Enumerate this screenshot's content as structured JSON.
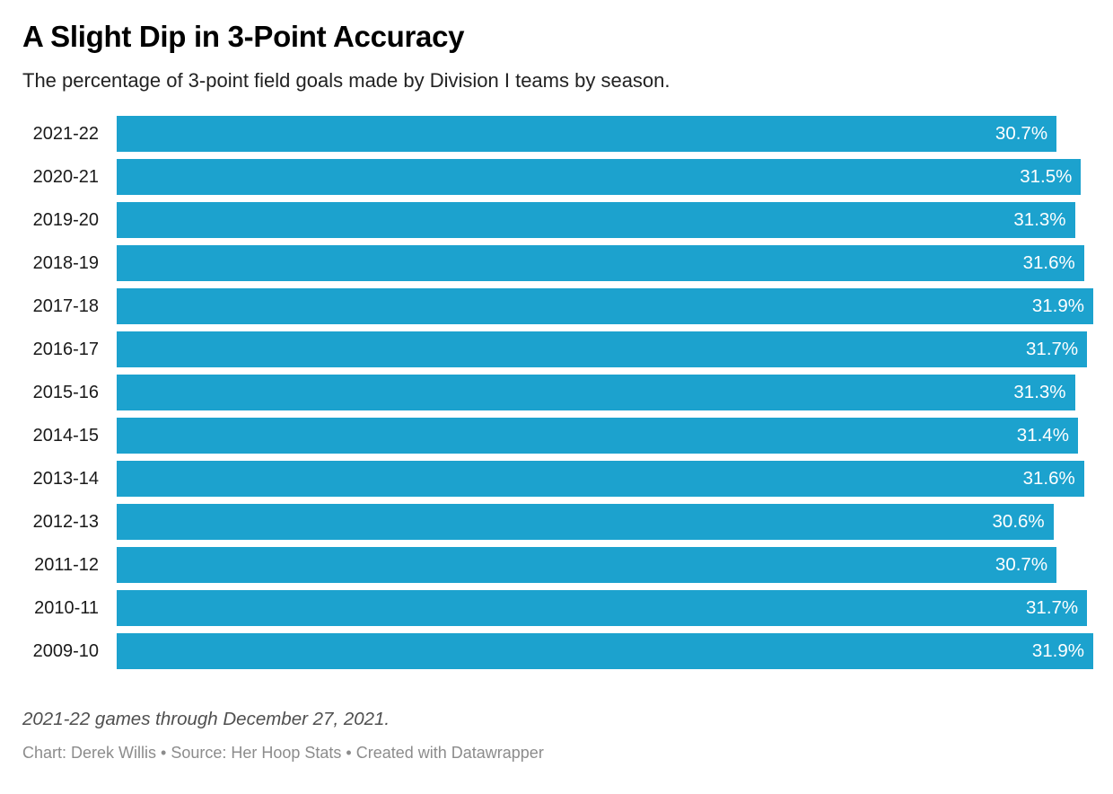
{
  "header": {
    "title": "A Slight Dip in 3-Point Accuracy",
    "subtitle": "The percentage of 3-point field goals made by Division I teams by season."
  },
  "chart_data": {
    "type": "bar",
    "orientation": "horizontal",
    "title": "A Slight Dip in 3-Point Accuracy",
    "subtitle": "The percentage of 3-point field goals made by Division I teams by season.",
    "xlabel": "",
    "ylabel": "",
    "categories": [
      "2021-22",
      "2020-21",
      "2019-20",
      "2018-19",
      "2017-18",
      "2016-17",
      "2015-16",
      "2014-15",
      "2013-14",
      "2012-13",
      "2011-12",
      "2010-11",
      "2009-10"
    ],
    "values": [
      30.7,
      31.5,
      31.3,
      31.6,
      31.9,
      31.7,
      31.3,
      31.4,
      31.6,
      30.6,
      30.7,
      31.7,
      31.9
    ],
    "value_labels": [
      "30.7%",
      "31.5%",
      "31.3%",
      "31.6%",
      "31.9%",
      "31.7%",
      "31.3%",
      "31.4%",
      "31.6%",
      "30.6%",
      "30.7%",
      "31.7%",
      "31.9%"
    ],
    "xlim": [
      0,
      31.9
    ],
    "grid": false,
    "legend": false,
    "bar_color": "#1CA2CE",
    "value_label_color": "#ffffff"
  },
  "footer": {
    "note": "2021-22 games through December 27, 2021.",
    "attribution": "Chart: Derek Willis • Source: Her Hoop Stats • Created with Datawrapper"
  }
}
